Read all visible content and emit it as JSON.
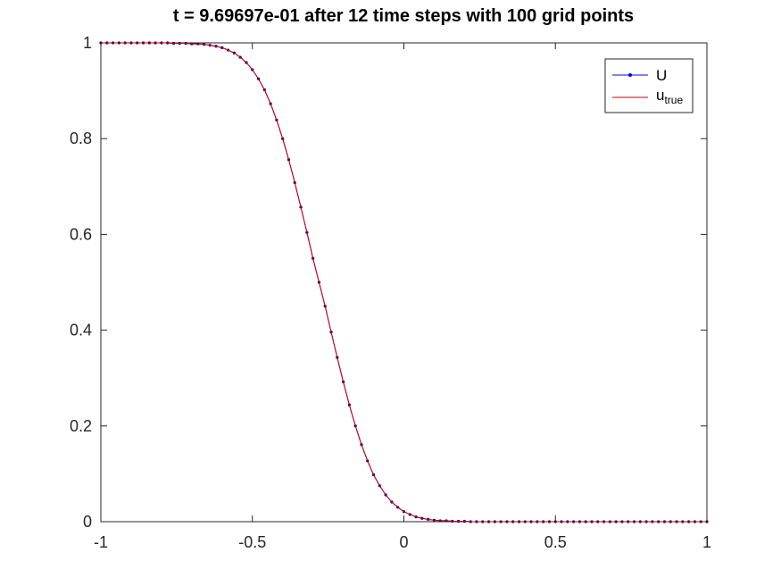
{
  "chart_data": {
    "type": "line",
    "title": "t = 9.69697e-01  after   12 time steps with   100 grid points",
    "xlabel": "",
    "ylabel": "",
    "xlim": [
      -1,
      1
    ],
    "ylim": [
      0,
      1
    ],
    "x_ticks": [
      -1,
      -0.5,
      0,
      0.5,
      1
    ],
    "x_tick_labels": [
      "-1",
      "-0.5",
      "0",
      "0.5",
      "1"
    ],
    "y_ticks": [
      0,
      0.2,
      0.4,
      0.6,
      0.8,
      1
    ],
    "y_tick_labels": [
      "0",
      "0.2",
      "0.4",
      "0.6",
      "0.8",
      "1"
    ],
    "grid": false,
    "legend_position": "top-right",
    "x": [
      -1,
      -0.98,
      -0.96,
      -0.94,
      -0.92,
      -0.9,
      -0.88,
      -0.86,
      -0.84,
      -0.82,
      -0.8,
      -0.78,
      -0.76,
      -0.74,
      -0.72,
      -0.7,
      -0.68,
      -0.66,
      -0.64,
      -0.62,
      -0.6,
      -0.58,
      -0.56,
      -0.54,
      -0.52,
      -0.5,
      -0.48,
      -0.46,
      -0.44,
      -0.42,
      -0.4,
      -0.38,
      -0.36,
      -0.34,
      -0.32,
      -0.3,
      -0.28,
      -0.26,
      -0.24,
      -0.22,
      -0.2,
      -0.18,
      -0.16,
      -0.14,
      -0.12,
      -0.1,
      -0.08,
      -0.06,
      -0.04,
      -0.02,
      0,
      0.02,
      0.04,
      0.06,
      0.08,
      0.1,
      0.12,
      0.14,
      0.16,
      0.18,
      0.2,
      0.22,
      0.24,
      0.26,
      0.28,
      0.3,
      0.32,
      0.34,
      0.36,
      0.38,
      0.4,
      0.42,
      0.44,
      0.46,
      0.48,
      0.5,
      0.52,
      0.54,
      0.56,
      0.58,
      0.6,
      0.62,
      0.64,
      0.66,
      0.68,
      0.7,
      0.72,
      0.74,
      0.76,
      0.78,
      0.8,
      0.82,
      0.84,
      0.86,
      0.88,
      0.9,
      0.92,
      0.94,
      0.96,
      0.98,
      1
    ],
    "series": [
      {
        "name": "U",
        "color": "#0000ff",
        "marker": "dot",
        "values": [
          1,
          1,
          1,
          1,
          1,
          1,
          1,
          1,
          1,
          1,
          1,
          1,
          0.999,
          0.999,
          0.999,
          0.998,
          0.998,
          0.997,
          0.995,
          0.993,
          0.99,
          0.985,
          0.979,
          0.97,
          0.959,
          0.944,
          0.925,
          0.902,
          0.873,
          0.839,
          0.8,
          0.756,
          0.708,
          0.657,
          0.604,
          0.55,
          0.5,
          0.45,
          0.396,
          0.343,
          0.292,
          0.244,
          0.2,
          0.161,
          0.127,
          0.098,
          0.075,
          0.056,
          0.041,
          0.03,
          0.021,
          0.015,
          0.01,
          0.007,
          0.005,
          0.003,
          0.002,
          0.002,
          0.001,
          0.001,
          0.001,
          0,
          0,
          0,
          0,
          0,
          0,
          0,
          0,
          0,
          0,
          0,
          0,
          0,
          0,
          0,
          0,
          0,
          0,
          0,
          0,
          0,
          0,
          0,
          0,
          0,
          0,
          0,
          0,
          0,
          0,
          0,
          0,
          0,
          0,
          0,
          0,
          0,
          0,
          0,
          0
        ]
      },
      {
        "name": "u_true",
        "color": "#cc0000",
        "marker": "none",
        "values": [
          1,
          1,
          1,
          1,
          1,
          1,
          1,
          1,
          1,
          1,
          1,
          1,
          0.999,
          0.999,
          0.999,
          0.998,
          0.998,
          0.997,
          0.995,
          0.993,
          0.99,
          0.985,
          0.979,
          0.97,
          0.959,
          0.944,
          0.925,
          0.902,
          0.873,
          0.839,
          0.8,
          0.756,
          0.708,
          0.657,
          0.604,
          0.55,
          0.5,
          0.45,
          0.396,
          0.343,
          0.292,
          0.244,
          0.2,
          0.161,
          0.127,
          0.098,
          0.075,
          0.056,
          0.041,
          0.03,
          0.021,
          0.015,
          0.01,
          0.007,
          0.005,
          0.003,
          0.002,
          0.002,
          0.001,
          0.001,
          0.001,
          0,
          0,
          0,
          0,
          0,
          0,
          0,
          0,
          0,
          0,
          0,
          0,
          0,
          0,
          0,
          0,
          0,
          0,
          0,
          0,
          0,
          0,
          0,
          0,
          0,
          0,
          0,
          0,
          0,
          0,
          0,
          0,
          0,
          0,
          0,
          0,
          0,
          0,
          0,
          0
        ]
      }
    ],
    "legend": {
      "u_label": "U",
      "utrue_main": "u",
      "utrue_sub": "true"
    }
  }
}
